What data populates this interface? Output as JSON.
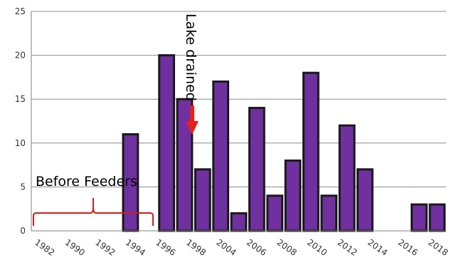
{
  "chart_data": {
    "type": "bar",
    "title": "",
    "xlabel": "",
    "ylabel": "",
    "ylim": [
      0,
      25
    ],
    "yticks": [
      0,
      5,
      10,
      15,
      20,
      25
    ],
    "grid": "horizontal",
    "bar_color": "#7030a0",
    "bar_edge_color": "#1a1a1a",
    "series": [
      {
        "values": [
          0,
          0,
          0,
          0,
          0,
          11,
          0,
          20,
          15,
          7,
          17,
          2,
          14,
          4,
          8,
          18,
          4,
          12,
          7,
          0,
          0,
          3,
          3
        ]
      }
    ],
    "x_tick_labels": [
      "1982",
      "1990",
      "1992",
      "1994",
      "1996",
      "1998",
      "2004",
      "2006",
      "2008",
      "2010",
      "2012",
      "2014",
      "2016",
      "2018"
    ],
    "annotations": [
      {
        "id": "before-feeders",
        "text": "Before Feeders",
        "kind": "brace",
        "color": "#cc1f1f"
      },
      {
        "id": "lake-drained",
        "text": "Lake drained",
        "kind": "arrow",
        "color": "#e8201b",
        "orientation": "vertical"
      }
    ]
  }
}
